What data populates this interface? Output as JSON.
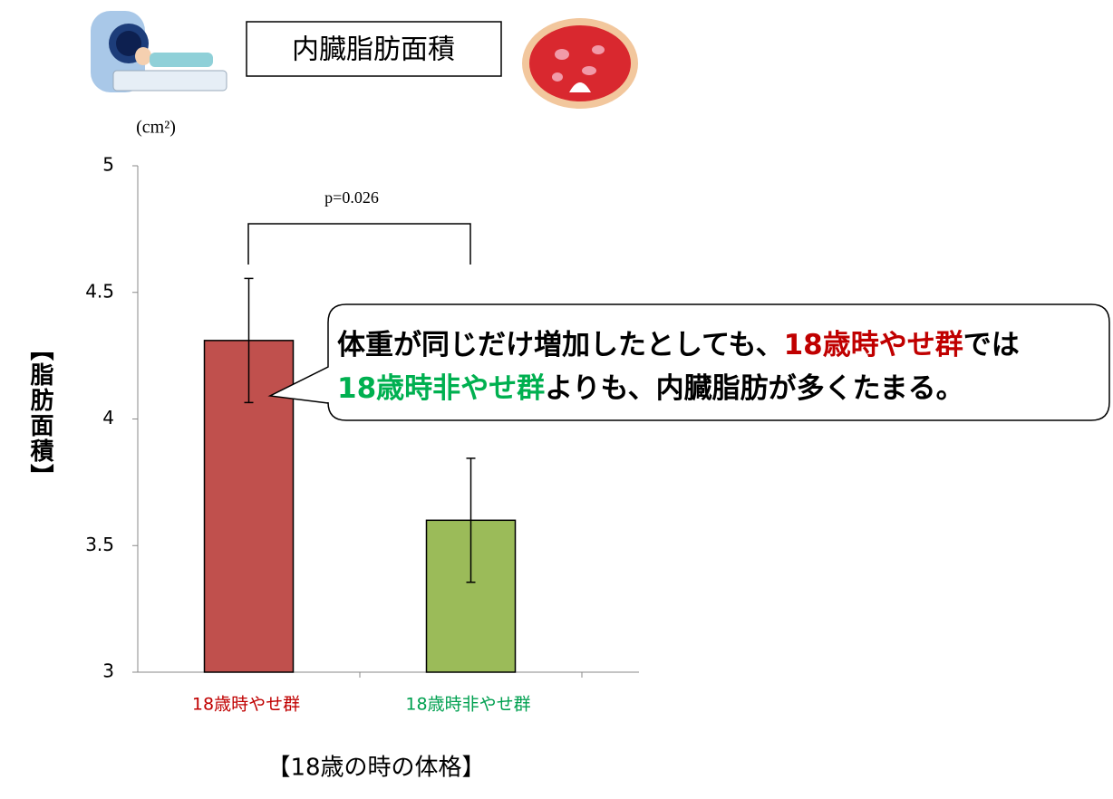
{
  "chart_data": {
    "type": "bar",
    "title": "内臓脂肪面積",
    "unit_label": "(cm²)",
    "y_label": "【脂肪面積】",
    "x_label": "【18歳の時の体格】",
    "categories": [
      "18歳時やせ群",
      "18歳時非やせ群"
    ],
    "values": [
      4.31,
      3.6
    ],
    "errors": [
      0.245,
      0.245
    ],
    "colors": [
      "#c0504d",
      "#9bbb59"
    ],
    "label_colors": [
      "#c00000",
      "#00a050"
    ],
    "ylim": [
      3,
      5
    ],
    "yticks": [
      3,
      3.5,
      4,
      4.5,
      5
    ],
    "annotation": "p=0.026",
    "callout": [
      [
        {
          "text": "体重が同じだけ増加したとしても、",
          "color": "#000000"
        },
        {
          "text": "18歳時やせ群",
          "color": "#c00000"
        },
        {
          "text": "では",
          "color": "#000000"
        }
      ],
      [
        {
          "text": "18歳時非やせ群",
          "color": "#00b050"
        },
        {
          "text": "よりも、内臓脂肪が多くたまる。",
          "color": "#000000"
        }
      ]
    ]
  }
}
